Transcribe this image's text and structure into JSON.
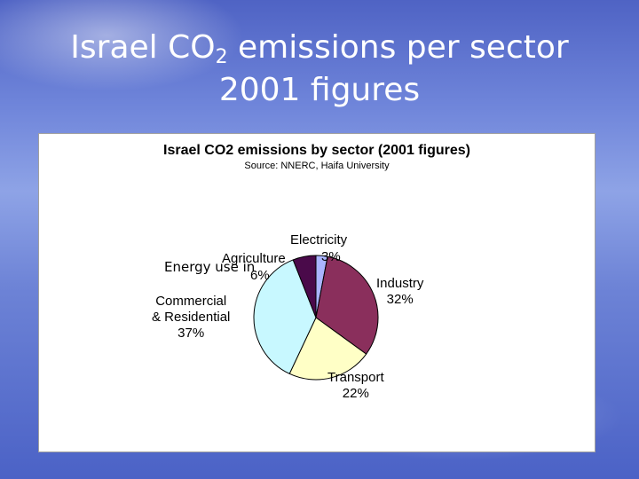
{
  "slide": {
    "title_pre": "Israel CO",
    "title_sub": "2",
    "title_post": " emissions per sector",
    "title_line2": "2001 figures"
  },
  "chart_data": {
    "type": "pie",
    "title": "Israel CO2 emissions by sector (2001 figures)",
    "subtitle": "Source: NNERC, Haifa University",
    "slices": [
      {
        "name": "Electricity",
        "value": 3,
        "label": "3%",
        "color": "#aab4ff"
      },
      {
        "name": "Industry",
        "value": 32,
        "label": "32%",
        "color": "#8a2f5c"
      },
      {
        "name": "Transport",
        "value": 22,
        "label": "22%",
        "color": "#ffffc6"
      },
      {
        "name": "Commercial & Residential",
        "value": 37,
        "label": "37%",
        "color": "#c8f8ff"
      },
      {
        "name": "Agriculture",
        "value": 6,
        "label": "6%",
        "color": "#4a0a4a"
      }
    ],
    "label_names": {
      "electricity": "Electricity",
      "industry": "Industry",
      "transport": "Transport",
      "commercial_line1": "Commercial",
      "commercial_line2": "& Residential",
      "agriculture": "Agriculture"
    },
    "annotation": {
      "line1": "Energy",
      "line2": "use in"
    }
  }
}
